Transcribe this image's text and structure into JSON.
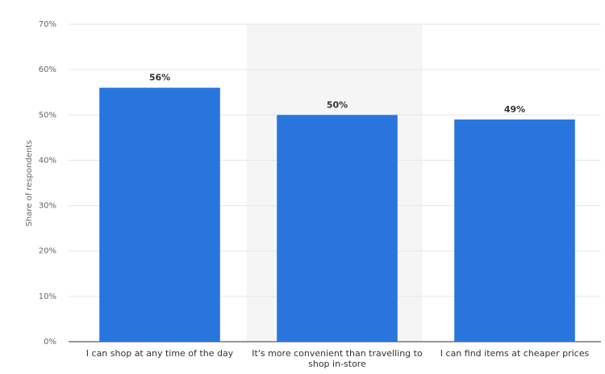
{
  "chart_data": {
    "type": "bar",
    "y_label": "Share of respondents",
    "categories": [
      "I can shop at any time of the day",
      "It's more convenient than travelling to shop in-store",
      "I can find items at cheaper prices"
    ],
    "values": [
      56,
      50,
      49
    ],
    "value_labels": [
      "56%",
      "50%",
      "49%"
    ],
    "color": "#2876dd",
    "ylim": [
      0,
      70
    ],
    "yticks": [
      {
        "value": 0,
        "label": "0%"
      },
      {
        "value": 10,
        "label": "10%"
      },
      {
        "value": 20,
        "label": "20%"
      },
      {
        "value": 30,
        "label": "30%"
      },
      {
        "value": 40,
        "label": "40%"
      },
      {
        "value": 50,
        "label": "50%"
      },
      {
        "value": 60,
        "label": "60%"
      },
      {
        "value": 70,
        "label": "70%"
      }
    ],
    "grid": true
  }
}
